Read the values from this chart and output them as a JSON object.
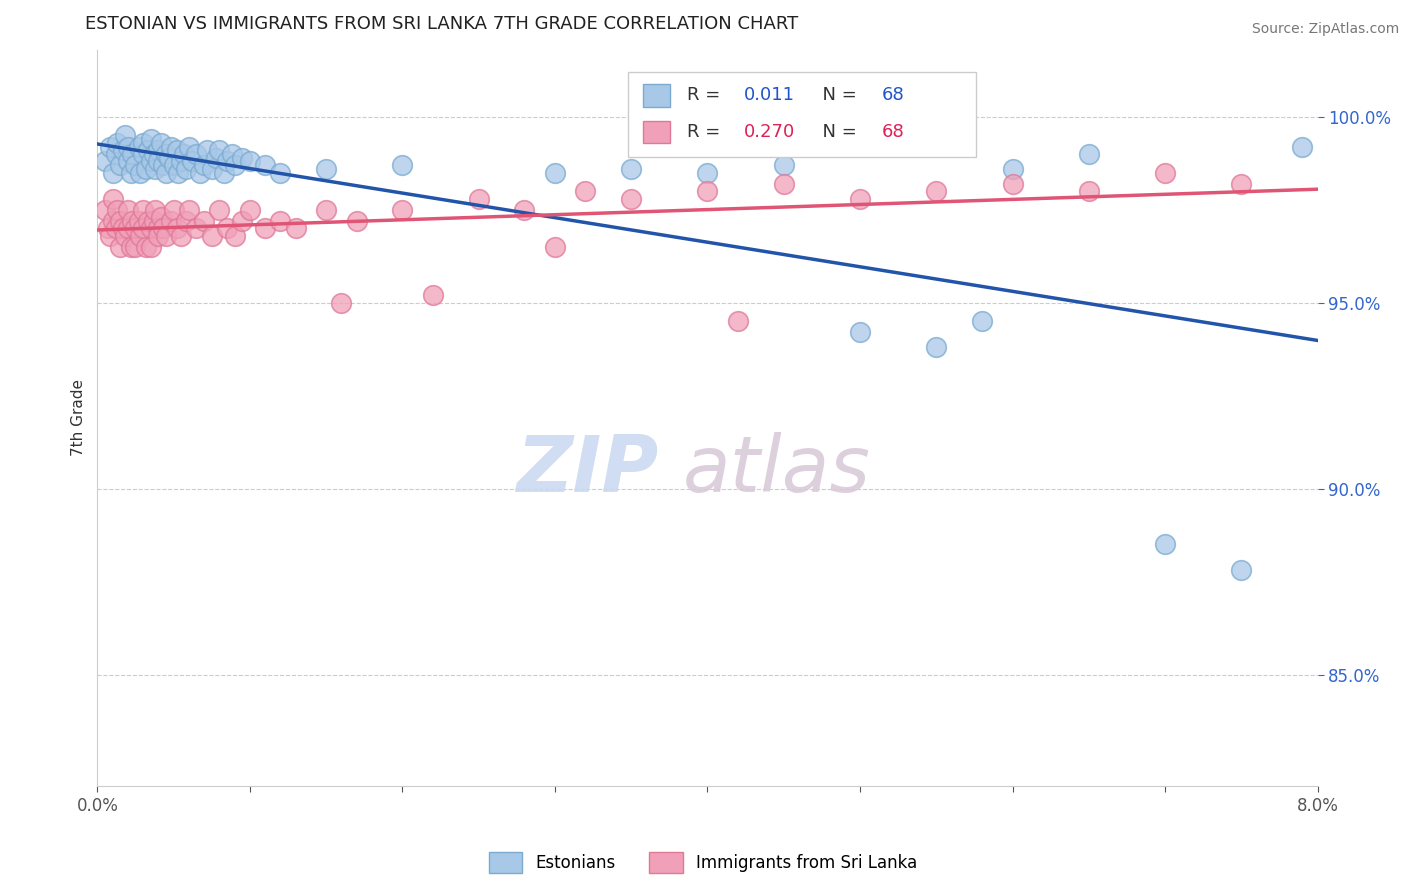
{
  "title": "ESTONIAN VS IMMIGRANTS FROM SRI LANKA 7TH GRADE CORRELATION CHART",
  "source_text": "Source: ZipAtlas.com",
  "ylabel": "7th Grade",
  "xmin": 0.0,
  "xmax": 8.0,
  "ymin": 82.0,
  "ymax": 101.8,
  "yticks": [
    85.0,
    90.0,
    95.0,
    100.0
  ],
  "ytick_labels": [
    "85.0%",
    "90.0%",
    "95.0%",
    "100.0%"
  ],
  "xtick_positions": [
    0.0,
    1.0,
    2.0,
    3.0,
    4.0,
    5.0,
    6.0,
    7.0,
    8.0
  ],
  "legend_blue_label": "Estonians",
  "legend_pink_label": "Immigrants from Sri Lanka",
  "R_blue": 0.011,
  "N_blue": 68,
  "R_pink": 0.27,
  "N_pink": 68,
  "blue_color": "#A8C8E8",
  "pink_color": "#F0A0B8",
  "blue_edge_color": "#7AAAD0",
  "pink_edge_color": "#E07898",
  "blue_line_color": "#2255AA",
  "pink_line_color": "#E05575",
  "blue_scatter_x": [
    0.05,
    0.08,
    0.1,
    0.12,
    0.13,
    0.15,
    0.17,
    0.18,
    0.2,
    0.2,
    0.22,
    0.23,
    0.25,
    0.27,
    0.28,
    0.3,
    0.3,
    0.32,
    0.33,
    0.35,
    0.35,
    0.37,
    0.38,
    0.4,
    0.4,
    0.42,
    0.43,
    0.45,
    0.45,
    0.47,
    0.48,
    0.5,
    0.52,
    0.53,
    0.55,
    0.57,
    0.58,
    0.6,
    0.62,
    0.65,
    0.67,
    0.7,
    0.72,
    0.75,
    0.78,
    0.8,
    0.83,
    0.85,
    0.88,
    0.9,
    0.95,
    1.0,
    1.1,
    1.2,
    1.5,
    2.0,
    3.0,
    3.5,
    4.0,
    4.5,
    5.0,
    5.5,
    5.8,
    6.0,
    6.5,
    7.0,
    7.5,
    7.9
  ],
  "blue_scatter_y": [
    98.8,
    99.2,
    98.5,
    99.0,
    99.3,
    98.7,
    99.1,
    99.5,
    98.8,
    99.2,
    98.5,
    99.0,
    98.7,
    99.2,
    98.5,
    99.0,
    99.3,
    98.6,
    99.1,
    98.8,
    99.4,
    99.0,
    98.6,
    99.1,
    98.8,
    99.3,
    98.7,
    99.0,
    98.5,
    98.9,
    99.2,
    98.7,
    99.1,
    98.5,
    98.8,
    99.0,
    98.6,
    99.2,
    98.8,
    99.0,
    98.5,
    98.7,
    99.1,
    98.6,
    98.9,
    99.1,
    98.5,
    98.8,
    99.0,
    98.7,
    98.9,
    98.8,
    98.7,
    98.5,
    98.6,
    98.7,
    98.5,
    98.6,
    98.5,
    98.7,
    94.2,
    93.8,
    94.5,
    98.6,
    99.0,
    88.5,
    87.8,
    99.2
  ],
  "pink_scatter_x": [
    0.05,
    0.07,
    0.08,
    0.1,
    0.1,
    0.12,
    0.13,
    0.15,
    0.15,
    0.17,
    0.18,
    0.2,
    0.2,
    0.22,
    0.23,
    0.25,
    0.25,
    0.27,
    0.28,
    0.3,
    0.3,
    0.32,
    0.33,
    0.35,
    0.35,
    0.37,
    0.38,
    0.4,
    0.4,
    0.42,
    0.43,
    0.45,
    0.48,
    0.5,
    0.52,
    0.55,
    0.58,
    0.6,
    0.65,
    0.7,
    0.75,
    0.8,
    0.85,
    0.9,
    0.95,
    1.0,
    1.1,
    1.2,
    1.3,
    1.5,
    1.7,
    2.0,
    2.5,
    2.8,
    3.2,
    3.5,
    4.0,
    4.5,
    5.0,
    5.5,
    6.0,
    6.5,
    7.0,
    7.5,
    1.6,
    2.2,
    3.0,
    4.2
  ],
  "pink_scatter_y": [
    97.5,
    97.0,
    96.8,
    97.2,
    97.8,
    97.0,
    97.5,
    96.5,
    97.2,
    97.0,
    96.8,
    97.5,
    97.0,
    96.5,
    97.2,
    97.0,
    96.5,
    97.2,
    96.8,
    97.5,
    97.0,
    96.5,
    97.2,
    97.0,
    96.5,
    97.2,
    97.5,
    97.0,
    96.8,
    97.3,
    97.0,
    96.8,
    97.2,
    97.5,
    97.0,
    96.8,
    97.2,
    97.5,
    97.0,
    97.2,
    96.8,
    97.5,
    97.0,
    96.8,
    97.2,
    97.5,
    97.0,
    97.2,
    97.0,
    97.5,
    97.2,
    97.5,
    97.8,
    97.5,
    98.0,
    97.8,
    98.0,
    98.2,
    97.8,
    98.0,
    98.2,
    98.0,
    98.5,
    98.2,
    95.0,
    95.2,
    96.5,
    94.5
  ]
}
